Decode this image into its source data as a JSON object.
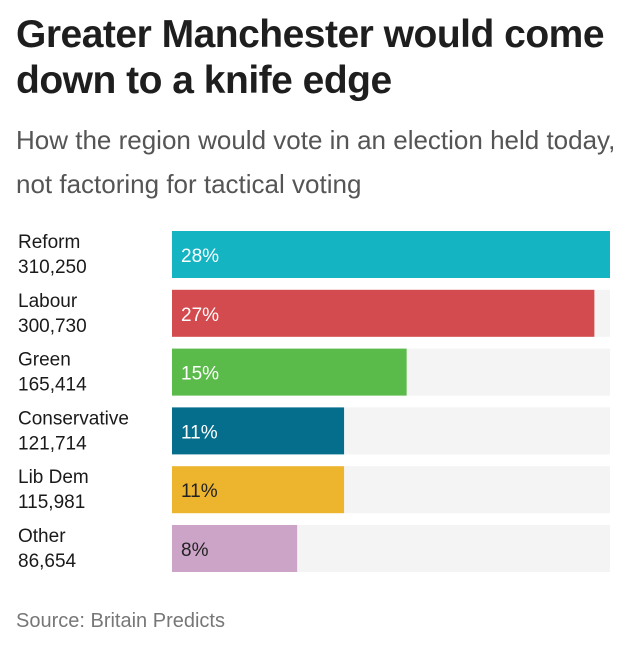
{
  "chart_data": {
    "type": "bar",
    "orientation": "horizontal",
    "title": "Greater Manchester would come down to a knife edge",
    "subtitle": "How the region would vote in an election held today, not factoring for tactical voting",
    "source": "Source: Britain Predicts",
    "xlim": [
      0,
      28
    ],
    "grid": false,
    "unit": "%",
    "categories": [
      "Reform",
      "Labour",
      "Green",
      "Conservative",
      "Lib Dem",
      "Other"
    ],
    "votes": [
      "310,250",
      "300,730",
      "165,414",
      "121,714",
      "115,981",
      "86,654"
    ],
    "values": [
      28,
      27,
      15,
      11,
      11,
      8
    ],
    "value_labels": [
      "28%",
      "27%",
      "15%",
      "11%",
      "11%",
      "8%"
    ],
    "colors": [
      "#15b4c2",
      "#d34b4e",
      "#5bbb4a",
      "#056e8c",
      "#edb52e",
      "#cca4c8"
    ],
    "label_colors": [
      "#ffffff",
      "#ffffff",
      "#ffffff",
      "#ffffff",
      "#222222",
      "#222222"
    ],
    "track_color": "#f4f4f4"
  }
}
